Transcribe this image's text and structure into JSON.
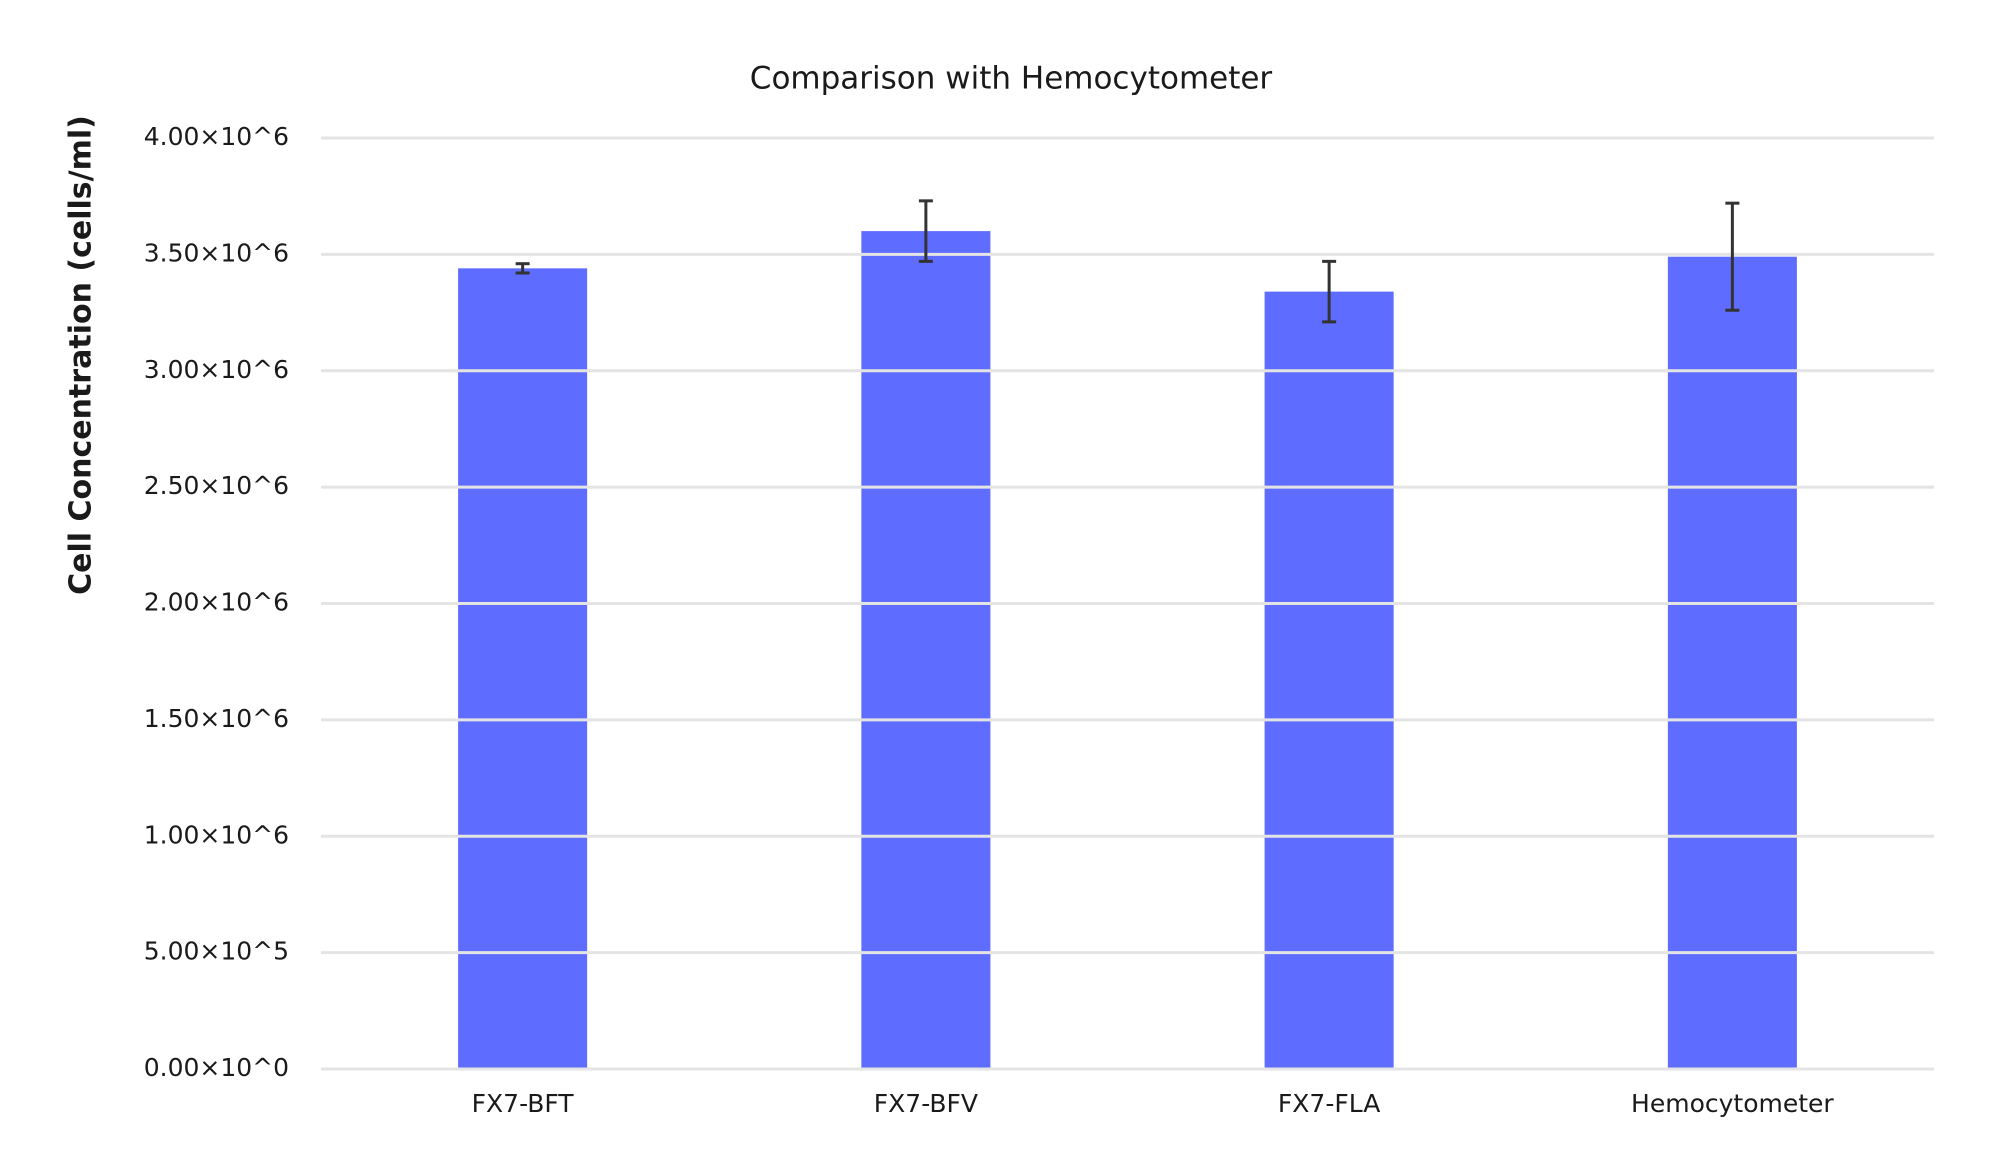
{
  "chart_data": {
    "type": "bar",
    "title": "Comparison with Hemocytometer",
    "y_label": "Cell Concentration (cells/ml)",
    "categories": [
      "FX7-BFT",
      "FX7-BFV",
      "FX7-FLA",
      "Hemocytometer"
    ],
    "values": [
      3440000,
      3600000,
      3340000,
      3490000
    ],
    "errors": [
      20000,
      130000,
      130000,
      230000
    ],
    "color": "#5e6cff",
    "ylim": [
      0,
      4000000
    ],
    "yticks": [
      {
        "value": 0,
        "label": "0.00×10^0"
      },
      {
        "value": 500000,
        "label": "5.00×10^5"
      },
      {
        "value": 1000000,
        "label": "1.00×10^6"
      },
      {
        "value": 1500000,
        "label": "1.50×10^6"
      },
      {
        "value": 2000000,
        "label": "2.00×10^6"
      },
      {
        "value": 2500000,
        "label": "2.50×10^6"
      },
      {
        "value": 3000000,
        "label": "3.00×10^6"
      },
      {
        "value": 3500000,
        "label": "3.50×10^6"
      },
      {
        "value": 4000000,
        "label": "4.00×10^6"
      }
    ],
    "grid": true
  }
}
